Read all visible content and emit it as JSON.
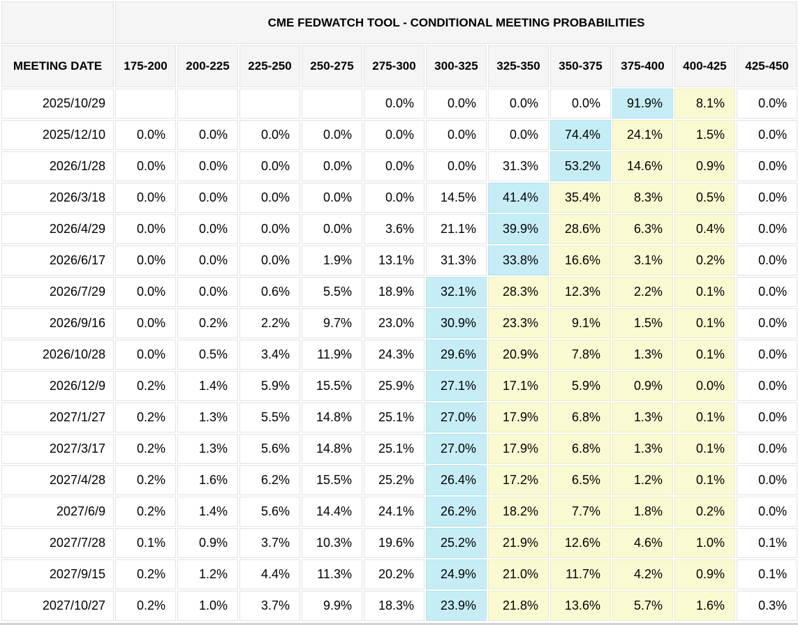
{
  "table": {
    "title": "CME FEDWATCH TOOL - CONDITIONAL MEETING PROBABILITIES",
    "meeting_date_header": "MEETING DATE",
    "rate_ranges": [
      "175-200",
      "200-225",
      "225-250",
      "250-275",
      "275-300",
      "300-325",
      "325-350",
      "350-375",
      "375-400",
      "400-425",
      "425-450"
    ],
    "rows": [
      {
        "date": "2025/10/29",
        "values": [
          "",
          "",
          "",
          "",
          "0.0%",
          "0.0%",
          "0.0%",
          "0.0%",
          "91.9%",
          "8.1%",
          "0.0%"
        ],
        "h": [
          "",
          "",
          "",
          "",
          "",
          "",
          "",
          "",
          "b",
          "y",
          ""
        ]
      },
      {
        "date": "2025/12/10",
        "values": [
          "0.0%",
          "0.0%",
          "0.0%",
          "0.0%",
          "0.0%",
          "0.0%",
          "0.0%",
          "74.4%",
          "24.1%",
          "1.5%",
          "0.0%"
        ],
        "h": [
          "",
          "",
          "",
          "",
          "",
          "",
          "",
          "b",
          "y",
          "y",
          ""
        ]
      },
      {
        "date": "2026/1/28",
        "values": [
          "0.0%",
          "0.0%",
          "0.0%",
          "0.0%",
          "0.0%",
          "0.0%",
          "31.3%",
          "53.2%",
          "14.6%",
          "0.9%",
          "0.0%"
        ],
        "h": [
          "",
          "",
          "",
          "",
          "",
          "",
          "",
          "b",
          "y",
          "y",
          ""
        ]
      },
      {
        "date": "2026/3/18",
        "values": [
          "0.0%",
          "0.0%",
          "0.0%",
          "0.0%",
          "0.0%",
          "14.5%",
          "41.4%",
          "35.4%",
          "8.3%",
          "0.5%",
          "0.0%"
        ],
        "h": [
          "",
          "",
          "",
          "",
          "",
          "",
          "b",
          "y",
          "y",
          "y",
          ""
        ]
      },
      {
        "date": "2026/4/29",
        "values": [
          "0.0%",
          "0.0%",
          "0.0%",
          "0.0%",
          "3.6%",
          "21.1%",
          "39.9%",
          "28.6%",
          "6.3%",
          "0.4%",
          "0.0%"
        ],
        "h": [
          "",
          "",
          "",
          "",
          "",
          "",
          "b",
          "y",
          "y",
          "y",
          ""
        ]
      },
      {
        "date": "2026/6/17",
        "values": [
          "0.0%",
          "0.0%",
          "0.0%",
          "1.9%",
          "13.1%",
          "31.3%",
          "33.8%",
          "16.6%",
          "3.1%",
          "0.2%",
          "0.0%"
        ],
        "h": [
          "",
          "",
          "",
          "",
          "",
          "",
          "b",
          "y",
          "y",
          "y",
          ""
        ]
      },
      {
        "date": "2026/7/29",
        "values": [
          "0.0%",
          "0.0%",
          "0.6%",
          "5.5%",
          "18.9%",
          "32.1%",
          "28.3%",
          "12.3%",
          "2.2%",
          "0.1%",
          "0.0%"
        ],
        "h": [
          "",
          "",
          "",
          "",
          "",
          "b",
          "y",
          "y",
          "y",
          "y",
          ""
        ]
      },
      {
        "date": "2026/9/16",
        "values": [
          "0.0%",
          "0.2%",
          "2.2%",
          "9.7%",
          "23.0%",
          "30.9%",
          "23.3%",
          "9.1%",
          "1.5%",
          "0.1%",
          "0.0%"
        ],
        "h": [
          "",
          "",
          "",
          "",
          "",
          "b",
          "y",
          "y",
          "y",
          "y",
          ""
        ]
      },
      {
        "date": "2026/10/28",
        "values": [
          "0.0%",
          "0.5%",
          "3.4%",
          "11.9%",
          "24.3%",
          "29.6%",
          "20.9%",
          "7.8%",
          "1.3%",
          "0.1%",
          "0.0%"
        ],
        "h": [
          "",
          "",
          "",
          "",
          "",
          "b",
          "y",
          "y",
          "y",
          "y",
          ""
        ]
      },
      {
        "date": "2026/12/9",
        "values": [
          "0.2%",
          "1.4%",
          "5.9%",
          "15.5%",
          "25.9%",
          "27.1%",
          "17.1%",
          "5.9%",
          "0.9%",
          "0.0%",
          "0.0%"
        ],
        "h": [
          "",
          "",
          "",
          "",
          "",
          "b",
          "y",
          "y",
          "y",
          "y",
          ""
        ]
      },
      {
        "date": "2027/1/27",
        "values": [
          "0.2%",
          "1.3%",
          "5.5%",
          "14.8%",
          "25.1%",
          "27.0%",
          "17.9%",
          "6.8%",
          "1.3%",
          "0.1%",
          "0.0%"
        ],
        "h": [
          "",
          "",
          "",
          "",
          "",
          "b",
          "y",
          "y",
          "y",
          "y",
          ""
        ]
      },
      {
        "date": "2027/3/17",
        "values": [
          "0.2%",
          "1.3%",
          "5.6%",
          "14.8%",
          "25.1%",
          "27.0%",
          "17.9%",
          "6.8%",
          "1.3%",
          "0.1%",
          "0.0%"
        ],
        "h": [
          "",
          "",
          "",
          "",
          "",
          "b",
          "y",
          "y",
          "y",
          "y",
          ""
        ]
      },
      {
        "date": "2027/4/28",
        "values": [
          "0.2%",
          "1.6%",
          "6.2%",
          "15.5%",
          "25.2%",
          "26.4%",
          "17.2%",
          "6.5%",
          "1.2%",
          "0.1%",
          "0.0%"
        ],
        "h": [
          "",
          "",
          "",
          "",
          "",
          "b",
          "y",
          "y",
          "y",
          "y",
          ""
        ]
      },
      {
        "date": "2027/6/9",
        "values": [
          "0.2%",
          "1.4%",
          "5.6%",
          "14.4%",
          "24.1%",
          "26.2%",
          "18.2%",
          "7.7%",
          "1.8%",
          "0.2%",
          "0.0%"
        ],
        "h": [
          "",
          "",
          "",
          "",
          "",
          "b",
          "y",
          "y",
          "y",
          "y",
          ""
        ]
      },
      {
        "date": "2027/7/28",
        "values": [
          "0.1%",
          "0.9%",
          "3.7%",
          "10.3%",
          "19.6%",
          "25.2%",
          "21.9%",
          "12.6%",
          "4.6%",
          "1.0%",
          "0.1%"
        ],
        "h": [
          "",
          "",
          "",
          "",
          "",
          "b",
          "y",
          "y",
          "y",
          "y",
          ""
        ]
      },
      {
        "date": "2027/9/15",
        "values": [
          "0.2%",
          "1.2%",
          "4.4%",
          "11.3%",
          "20.2%",
          "24.9%",
          "21.0%",
          "11.7%",
          "4.2%",
          "0.9%",
          "0.1%"
        ],
        "h": [
          "",
          "",
          "",
          "",
          "",
          "b",
          "y",
          "y",
          "y",
          "y",
          ""
        ]
      },
      {
        "date": "2027/10/27",
        "values": [
          "0.2%",
          "1.0%",
          "3.7%",
          "9.9%",
          "18.3%",
          "23.9%",
          "21.8%",
          "13.6%",
          "5.7%",
          "1.6%",
          "0.3%"
        ],
        "h": [
          "",
          "",
          "",
          "",
          "",
          "b",
          "y",
          "y",
          "y",
          "y",
          ""
        ]
      }
    ]
  },
  "colors": {
    "highlight_blue": "#c6edf6",
    "highlight_yellow": "#fafad2",
    "header_bg": "#f5f5f5",
    "grid": "#e2e2e2"
  }
}
